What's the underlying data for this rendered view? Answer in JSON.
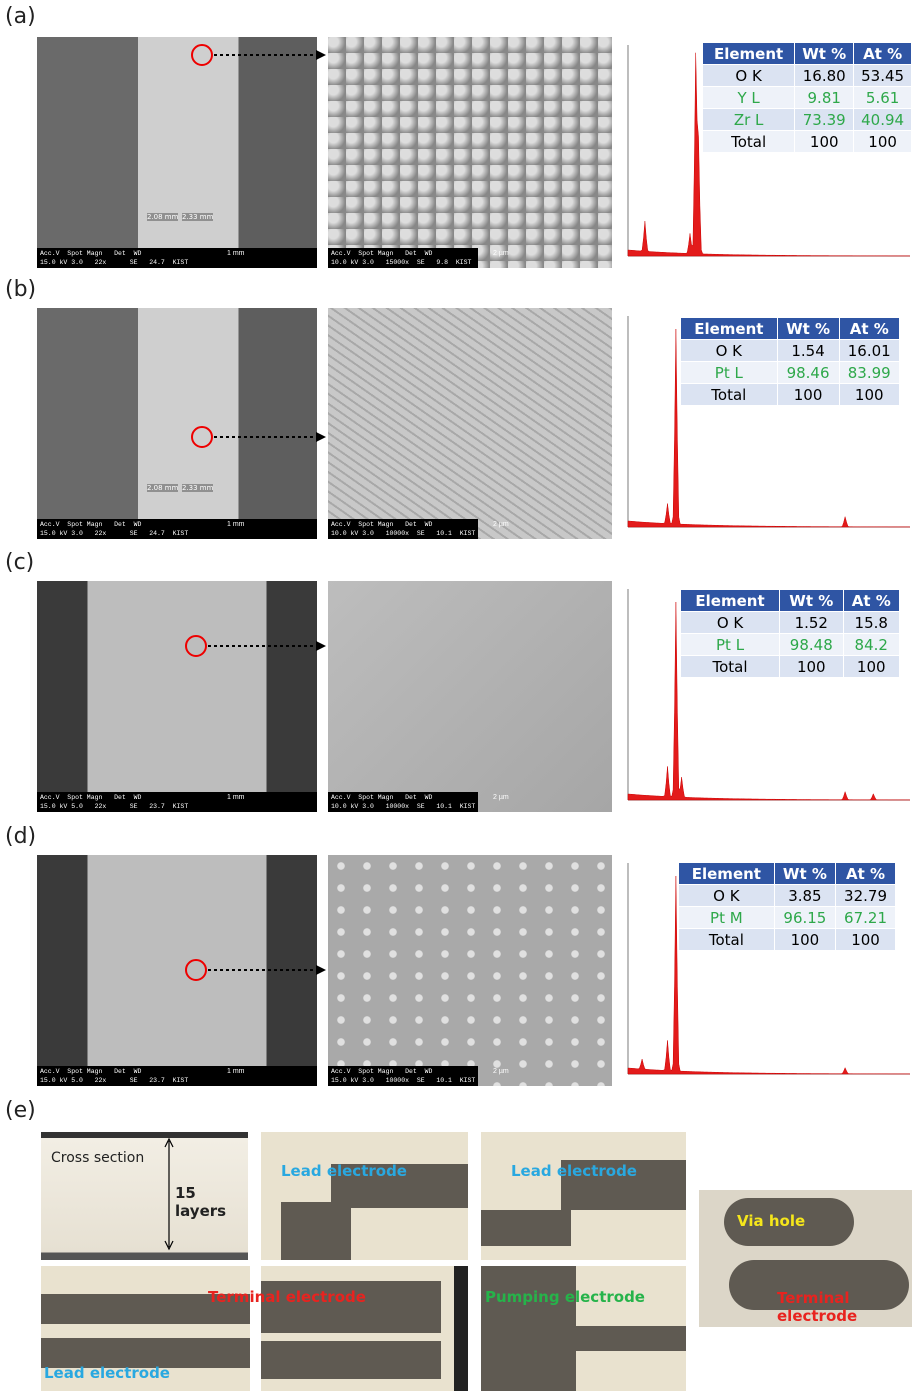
{
  "panels": [
    {
      "label": "(a)",
      "sem_left": {
        "info": [
          "Acc.V  Spot Magn   Det  WD",
          "15.0 kV 3.0   22x      SE   24.7  KIST"
        ],
        "scale": "1 mm",
        "dims": [
          "2.08 mm",
          "2.33 mm"
        ]
      },
      "sem_right": {
        "info": [
          "Acc.V  Spot Magn   Det  WD",
          "10.0 kV 3.0   15000x  SE   9.8  KIST"
        ],
        "scale": "2 µm"
      },
      "table": {
        "header": [
          "Element",
          "Wt %",
          "At %"
        ],
        "rows": [
          [
            "O K",
            "16.80",
            "53.45"
          ],
          [
            "Y L",
            "9.81",
            "5.61"
          ],
          [
            "Zr L",
            "73.39",
            "40.94"
          ],
          [
            "Total",
            "100",
            "100"
          ]
        ]
      }
    },
    {
      "label": "(b)",
      "sem_left": {
        "info": [
          "Acc.V  Spot Magn   Det  WD",
          "15.0 kV 3.0   22x      SE   24.7  KIST"
        ],
        "scale": "1 mm",
        "dims": [
          "2.08 mm",
          "2.33 mm"
        ]
      },
      "sem_right": {
        "info": [
          "Acc.V  Spot Magn   Det  WD",
          "10.0 kV 3.0   10000x  SE   10.1  KIST"
        ],
        "scale": "2 µm"
      },
      "table": {
        "header": [
          "Element",
          "Wt %",
          "At %"
        ],
        "rows": [
          [
            "O K",
            "1.54",
            "16.01"
          ],
          [
            "Pt L",
            "98.46",
            "83.99"
          ],
          [
            "Total",
            "100",
            "100"
          ]
        ]
      }
    },
    {
      "label": "(c)",
      "sem_left": {
        "info": [
          "Acc.V  Spot Magn   Det  WD",
          "15.0 kV 5.0   22x      SE   23.7  KIST"
        ],
        "scale": "1 mm"
      },
      "sem_right": {
        "info": [
          "Acc.V  Spot Magn   Det  WD",
          "10.0 kV 3.0   10000x  SE   10.1  KIST"
        ],
        "scale": "2 µm"
      },
      "table": {
        "header": [
          "Element",
          "Wt %",
          "At %"
        ],
        "rows": [
          [
            "O K",
            "1.52",
            "15.8"
          ],
          [
            "Pt L",
            "98.48",
            "84.2"
          ],
          [
            "Total",
            "100",
            "100"
          ]
        ]
      }
    },
    {
      "label": "(d)",
      "sem_left": {
        "info": [
          "Acc.V  Spot Magn   Det  WD",
          "15.0 kV 5.0   22x      SE   23.7  KIST"
        ],
        "scale": "1 mm"
      },
      "sem_right": {
        "info": [
          "Acc.V  Spot Magn   Det  WD",
          "15.0 kV 3.0   10000x  SE   10.1  KIST"
        ],
        "scale": "2 µm"
      },
      "table": {
        "header": [
          "Element",
          "Wt %",
          "At %"
        ],
        "rows": [
          [
            "O K",
            "3.85",
            "32.79"
          ],
          [
            "Pt M",
            "96.15",
            "67.21"
          ],
          [
            "Total",
            "100",
            "100"
          ]
        ]
      }
    }
  ],
  "photos": {
    "label": "(e)",
    "cross_section": "Cross section",
    "layers": "15 layers",
    "lead": [
      "Lead electrode",
      "Lead electrode",
      "Lead electrode"
    ],
    "terminal": [
      "Terminal electrode",
      "Terminal electrode"
    ],
    "pumping": "Pumping electrode",
    "via": "Via hole"
  }
}
